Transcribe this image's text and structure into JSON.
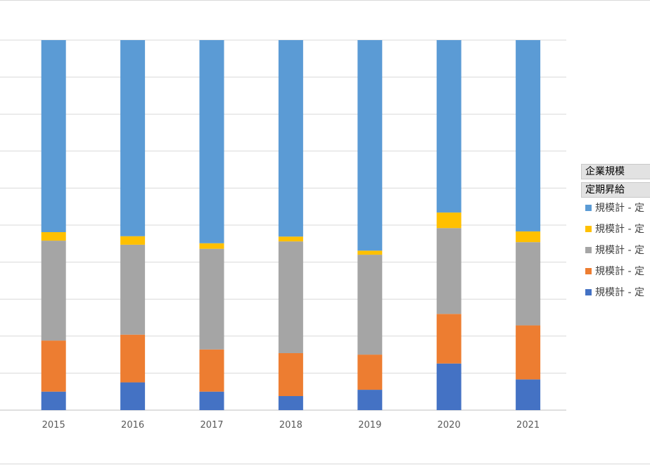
{
  "legend": {
    "field_row": "企業規模",
    "value_row": "定期昇給",
    "items": [
      {
        "label": "規模計 - 定",
        "color": "#5b9bd5"
      },
      {
        "label": "規模計 - 定",
        "color": "#ffc000"
      },
      {
        "label": "規模計 - 定",
        "color": "#a5a5a5"
      },
      {
        "label": "規模計 - 定",
        "color": "#ed7d31"
      },
      {
        "label": "規模計 - 定",
        "color": "#4472c4"
      }
    ]
  },
  "chart_data": {
    "type": "bar",
    "stacked": true,
    "percent_stacked": true,
    "categories": [
      "2015",
      "2016",
      "2017",
      "2018",
      "2019",
      "2020",
      "2021"
    ],
    "gridlines": true,
    "y_axis_labels_visible": false,
    "ylim": [
      0,
      100
    ],
    "series": [
      {
        "color": "#4472c4",
        "values": [
          5.0,
          7.5,
          5.0,
          3.8,
          5.5,
          12.6,
          8.3
        ]
      },
      {
        "color": "#ed7d31",
        "values": [
          13.8,
          12.9,
          11.4,
          11.6,
          9.5,
          13.4,
          14.6
        ]
      },
      {
        "color": "#a5a5a5",
        "values": [
          27.0,
          24.3,
          27.2,
          30.2,
          27.0,
          23.2,
          22.5
        ]
      },
      {
        "color": "#ffc000",
        "values": [
          2.3,
          2.3,
          1.5,
          1.3,
          1.1,
          4.2,
          2.9
        ]
      },
      {
        "color": "#5b9bd5",
        "values": [
          51.9,
          53.0,
          54.9,
          53.1,
          56.9,
          46.6,
          51.7
        ]
      }
    ]
  }
}
